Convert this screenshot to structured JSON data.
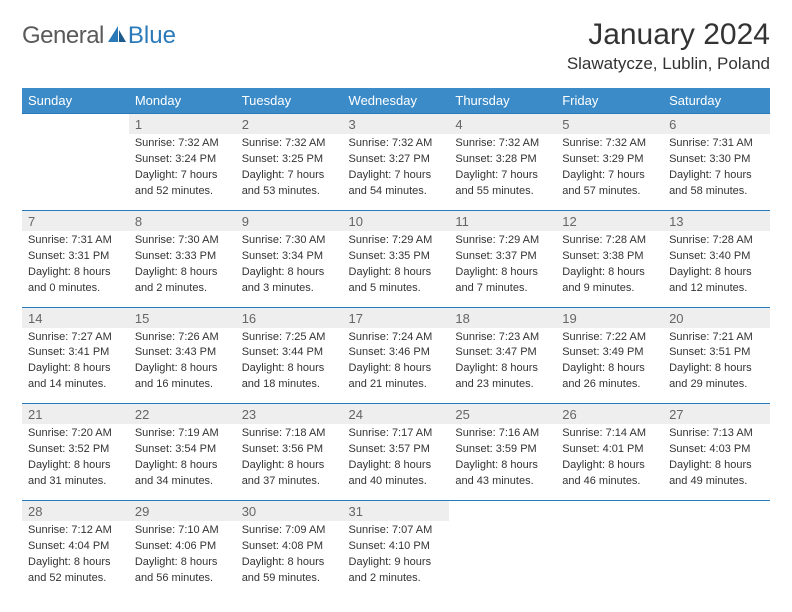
{
  "brand": {
    "general": "General",
    "blue": "Blue"
  },
  "title": "January 2024",
  "location": "Slawatycze, Lublin, Poland",
  "colors": {
    "header_bg": "#3b8bc8",
    "header_text": "#ffffff",
    "daynum_bg": "#eeeeee",
    "daynum_text": "#666666",
    "cell_border": "#2a7ab9",
    "body_text": "#333333",
    "logo_gray": "#5a5a5a",
    "logo_blue": "#2a7ab9"
  },
  "typography": {
    "month_title_size": 30,
    "location_size": 17,
    "weekday_header_size": 13,
    "daynum_size": 13,
    "detail_size": 11
  },
  "weekdays": [
    "Sunday",
    "Monday",
    "Tuesday",
    "Wednesday",
    "Thursday",
    "Friday",
    "Saturday"
  ],
  "weeks": [
    [
      null,
      {
        "n": "1",
        "sunrise": "7:32 AM",
        "sunset": "3:24 PM",
        "daylight": "7 hours and 52 minutes."
      },
      {
        "n": "2",
        "sunrise": "7:32 AM",
        "sunset": "3:25 PM",
        "daylight": "7 hours and 53 minutes."
      },
      {
        "n": "3",
        "sunrise": "7:32 AM",
        "sunset": "3:27 PM",
        "daylight": "7 hours and 54 minutes."
      },
      {
        "n": "4",
        "sunrise": "7:32 AM",
        "sunset": "3:28 PM",
        "daylight": "7 hours and 55 minutes."
      },
      {
        "n": "5",
        "sunrise": "7:32 AM",
        "sunset": "3:29 PM",
        "daylight": "7 hours and 57 minutes."
      },
      {
        "n": "6",
        "sunrise": "7:31 AM",
        "sunset": "3:30 PM",
        "daylight": "7 hours and 58 minutes."
      }
    ],
    [
      {
        "n": "7",
        "sunrise": "7:31 AM",
        "sunset": "3:31 PM",
        "daylight": "8 hours and 0 minutes."
      },
      {
        "n": "8",
        "sunrise": "7:30 AM",
        "sunset": "3:33 PM",
        "daylight": "8 hours and 2 minutes."
      },
      {
        "n": "9",
        "sunrise": "7:30 AM",
        "sunset": "3:34 PM",
        "daylight": "8 hours and 3 minutes."
      },
      {
        "n": "10",
        "sunrise": "7:29 AM",
        "sunset": "3:35 PM",
        "daylight": "8 hours and 5 minutes."
      },
      {
        "n": "11",
        "sunrise": "7:29 AM",
        "sunset": "3:37 PM",
        "daylight": "8 hours and 7 minutes."
      },
      {
        "n": "12",
        "sunrise": "7:28 AM",
        "sunset": "3:38 PM",
        "daylight": "8 hours and 9 minutes."
      },
      {
        "n": "13",
        "sunrise": "7:28 AM",
        "sunset": "3:40 PM",
        "daylight": "8 hours and 12 minutes."
      }
    ],
    [
      {
        "n": "14",
        "sunrise": "7:27 AM",
        "sunset": "3:41 PM",
        "daylight": "8 hours and 14 minutes."
      },
      {
        "n": "15",
        "sunrise": "7:26 AM",
        "sunset": "3:43 PM",
        "daylight": "8 hours and 16 minutes."
      },
      {
        "n": "16",
        "sunrise": "7:25 AM",
        "sunset": "3:44 PM",
        "daylight": "8 hours and 18 minutes."
      },
      {
        "n": "17",
        "sunrise": "7:24 AM",
        "sunset": "3:46 PM",
        "daylight": "8 hours and 21 minutes."
      },
      {
        "n": "18",
        "sunrise": "7:23 AM",
        "sunset": "3:47 PM",
        "daylight": "8 hours and 23 minutes."
      },
      {
        "n": "19",
        "sunrise": "7:22 AM",
        "sunset": "3:49 PM",
        "daylight": "8 hours and 26 minutes."
      },
      {
        "n": "20",
        "sunrise": "7:21 AM",
        "sunset": "3:51 PM",
        "daylight": "8 hours and 29 minutes."
      }
    ],
    [
      {
        "n": "21",
        "sunrise": "7:20 AM",
        "sunset": "3:52 PM",
        "daylight": "8 hours and 31 minutes."
      },
      {
        "n": "22",
        "sunrise": "7:19 AM",
        "sunset": "3:54 PM",
        "daylight": "8 hours and 34 minutes."
      },
      {
        "n": "23",
        "sunrise": "7:18 AM",
        "sunset": "3:56 PM",
        "daylight": "8 hours and 37 minutes."
      },
      {
        "n": "24",
        "sunrise": "7:17 AM",
        "sunset": "3:57 PM",
        "daylight": "8 hours and 40 minutes."
      },
      {
        "n": "25",
        "sunrise": "7:16 AM",
        "sunset": "3:59 PM",
        "daylight": "8 hours and 43 minutes."
      },
      {
        "n": "26",
        "sunrise": "7:14 AM",
        "sunset": "4:01 PM",
        "daylight": "8 hours and 46 minutes."
      },
      {
        "n": "27",
        "sunrise": "7:13 AM",
        "sunset": "4:03 PM",
        "daylight": "8 hours and 49 minutes."
      }
    ],
    [
      {
        "n": "28",
        "sunrise": "7:12 AM",
        "sunset": "4:04 PM",
        "daylight": "8 hours and 52 minutes."
      },
      {
        "n": "29",
        "sunrise": "7:10 AM",
        "sunset": "4:06 PM",
        "daylight": "8 hours and 56 minutes."
      },
      {
        "n": "30",
        "sunrise": "7:09 AM",
        "sunset": "4:08 PM",
        "daylight": "8 hours and 59 minutes."
      },
      {
        "n": "31",
        "sunrise": "7:07 AM",
        "sunset": "4:10 PM",
        "daylight": "9 hours and 2 minutes."
      },
      null,
      null,
      null
    ]
  ]
}
